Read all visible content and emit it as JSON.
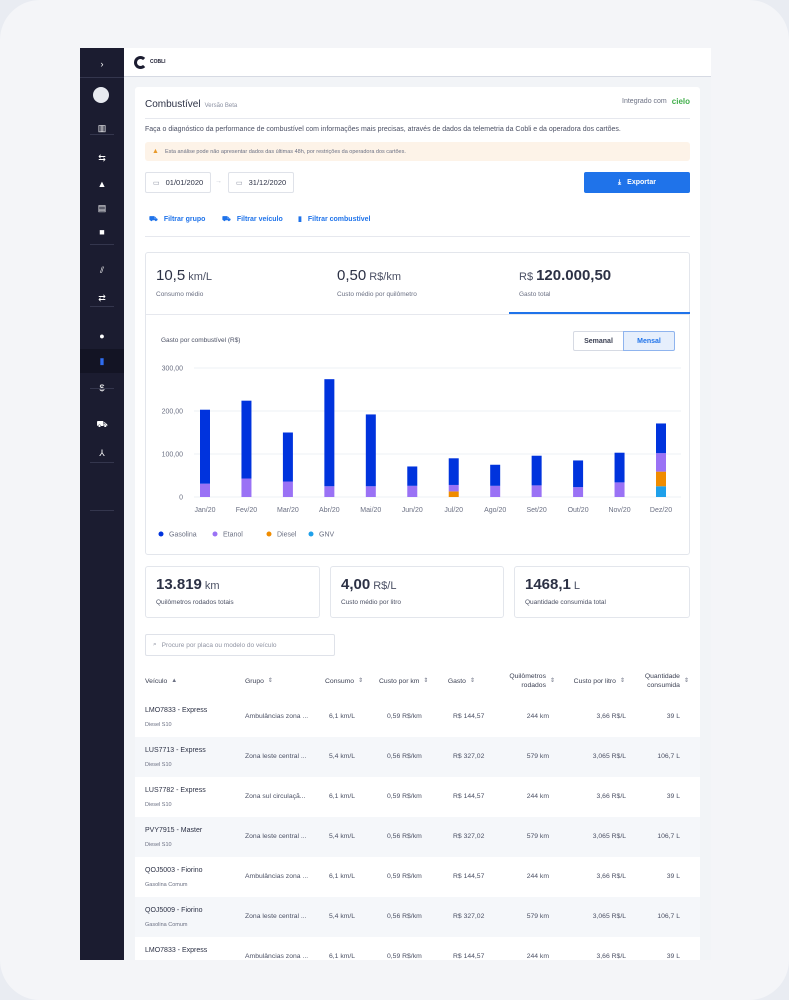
{
  "app": {
    "logo_text": "COBLI"
  },
  "sidebar": {
    "items": [
      {
        "icon": "chevron-right-icon",
        "glyph": "›"
      },
      {
        "icon": "home-icon",
        "glyph": "⌂"
      },
      {
        "icon": "map-icon",
        "glyph": "▥"
      },
      {
        "icon": "routes-icon",
        "glyph": "⇆"
      },
      {
        "icon": "bell-icon",
        "glyph": "▲"
      },
      {
        "icon": "report-icon",
        "glyph": "▤"
      },
      {
        "icon": "video-icon",
        "glyph": "■"
      },
      {
        "icon": "road-icon",
        "glyph": "⫽"
      },
      {
        "icon": "swap-icon",
        "glyph": "⇄"
      },
      {
        "icon": "globe-settings-icon",
        "glyph": "●"
      },
      {
        "icon": "bar-chart-icon",
        "glyph": "▮"
      },
      {
        "icon": "dollar-icon",
        "glyph": "$"
      },
      {
        "icon": "vehicles-icon",
        "glyph": "⛟"
      },
      {
        "icon": "network-icon",
        "glyph": "⅄"
      }
    ],
    "active": "bar-chart-icon"
  },
  "header": {
    "title": "Combustível",
    "badge": "Versão Beta",
    "integrated_label": "Integrado com",
    "partner": "cielo"
  },
  "description": "Faça o diagnóstico da performance de combustível com informações mais precisas, através de dados da telemetria da Cobli e da operadora dos cartões.",
  "warning": "Esta análise pode não apresentar dados das últimas 48h, por restrições da operadora dos cartões.",
  "dates": {
    "start": "01/01/2020",
    "end": "31/12/2020"
  },
  "export_label": "Exportar",
  "filters": [
    "Filtrar grupo",
    "Filtrar veículo",
    "Filtrar combustível"
  ],
  "kpis": [
    {
      "value": "10,5",
      "unit": "km/L",
      "label": "Consumo médio"
    },
    {
      "value": "0,50",
      "unit": "R$/km",
      "label": "Custo médio por quilômetro"
    },
    {
      "prefix": "R$",
      "value": "120.000,50",
      "label": "Gasto total",
      "selected": true
    }
  ],
  "toggle": {
    "options": [
      "Semanal",
      "Mensal"
    ],
    "selected": "Mensal"
  },
  "chart_data": {
    "type": "bar",
    "stacked": true,
    "title": "Gasto por combustível (R$)",
    "categories": [
      "Jan/20",
      "Fev/20",
      "Mar/20",
      "Abr/20",
      "Mai/20",
      "Jun/20",
      "Jul/20",
      "Ago/20",
      "Set/20",
      "Out/20",
      "Nov/20",
      "Dez/20"
    ],
    "yticks": [
      "0",
      "100,00",
      "200,00",
      "300,00"
    ],
    "ylim": [
      0,
      300
    ],
    "grid": true,
    "legend": "bottom-left",
    "series": [
      {
        "name": "GNV",
        "color": "#1fa0ea",
        "values": [
          0,
          0,
          0,
          0,
          0,
          0,
          0,
          0,
          0,
          0,
          0,
          25
        ]
      },
      {
        "name": "Diesel",
        "color": "#f08c00",
        "values": [
          0,
          0,
          0,
          0,
          0,
          0,
          13,
          0,
          0,
          0,
          0,
          34
        ]
      },
      {
        "name": "Etanol",
        "color": "#9a72f5",
        "values": [
          31,
          43,
          36,
          25,
          25,
          26,
          15,
          26,
          27,
          23,
          34,
          43
        ]
      },
      {
        "name": "Gasolina",
        "color": "#0033dd",
        "values": [
          172,
          181,
          114,
          249,
          167,
          45,
          62,
          49,
          69,
          62,
          69,
          69
        ]
      }
    ],
    "legend_order": [
      "Gasolina",
      "Etanol",
      "Diesel",
      "GNV"
    ]
  },
  "stats": [
    {
      "value": "13.819",
      "unit": "km",
      "label": "Quilômetros rodados totais"
    },
    {
      "value": "4,00",
      "unit": "R$/L",
      "label": "Custo médio por litro"
    },
    {
      "value": "1468,1",
      "unit": "L",
      "label": "Quantidade consumida total"
    }
  ],
  "search": {
    "placeholder": "Procure por placa ou modelo do veículo"
  },
  "table": {
    "headers": [
      "Veículo",
      "Grupo",
      "Consumo",
      "Custo por km",
      "Gasto",
      "Quilômetros rodados",
      "Custo por litro",
      "Quantidade consumida"
    ],
    "rows": [
      {
        "vehicle": "LMO7833 - Express",
        "fuel": "Diesel S10",
        "group": "Ambulâncias zona ...",
        "consumo": "6,1 km/L",
        "ckm": "0,59 R$/km",
        "gasto": "R$ 144,57",
        "km": "244 km",
        "cl": "3,66 R$/L",
        "qtd": "39 L"
      },
      {
        "vehicle": "LUS7713 - Express",
        "fuel": "Diesel S10",
        "group": "Zona leste central ...",
        "consumo": "5,4 km/L",
        "ckm": "0,56 R$/km",
        "gasto": "R$ 327,02",
        "km": "579 km",
        "cl": "3,065 R$/L",
        "qtd": "106,7 L"
      },
      {
        "vehicle": "LUS7782 - Express",
        "fuel": "Diesel S10",
        "group": "Zona sul circulaçã...",
        "consumo": "6,1 km/L",
        "ckm": "0,59 R$/km",
        "gasto": "R$ 144,57",
        "km": "244 km",
        "cl": "3,66 R$/L",
        "qtd": "39 L"
      },
      {
        "vehicle": "PVY7915 - Master",
        "fuel": "Diesel S10",
        "group": "Zona leste central ...",
        "consumo": "5,4 km/L",
        "ckm": "0,56 R$/km",
        "gasto": "R$ 327,02",
        "km": "579 km",
        "cl": "3,065 R$/L",
        "qtd": "106,7 L"
      },
      {
        "vehicle": "QOJ5003 - Fiorino",
        "fuel": "Gasolina Comum",
        "group": "Ambulâncias zona ...",
        "consumo": "6,1 km/L",
        "ckm": "0,59 R$/km",
        "gasto": "R$ 144,57",
        "km": "244 km",
        "cl": "3,66 R$/L",
        "qtd": "39 L"
      },
      {
        "vehicle": "QOJ5009 - Fiorino",
        "fuel": "Gasolina Comum",
        "group": "Zona leste central ...",
        "consumo": "5,4 km/L",
        "ckm": "0,56 R$/km",
        "gasto": "R$ 327,02",
        "km": "579 km",
        "cl": "3,065 R$/L",
        "qtd": "106,7 L"
      },
      {
        "vehicle": "LMO7833 - Express",
        "fuel": "",
        "group": "Ambulâncias zona ...",
        "consumo": "6,1 km/L",
        "ckm": "0,59 R$/km",
        "gasto": "R$ 144,57",
        "km": "244 km",
        "cl": "3,66 R$/L",
        "qtd": "39 L"
      }
    ]
  }
}
